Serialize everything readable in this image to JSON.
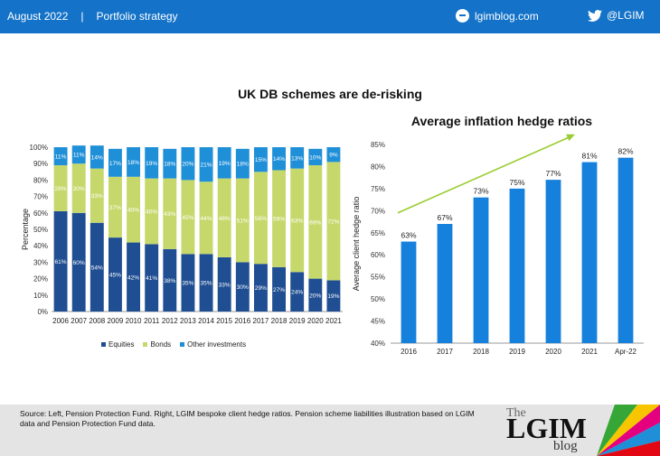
{
  "header": {
    "date": "August 2022",
    "separator": "|",
    "section": "Portfolio strategy",
    "blog": "lgimblog.com",
    "twitter": "@LGIM"
  },
  "main_title": "UK DB schemes are de-risking",
  "colors": {
    "equities": "#1f4e92",
    "bonds": "#c6d86b",
    "other": "#1f8fd8",
    "hedge_bar": "#1680dd",
    "arrow": "#9acd32",
    "header": "#1473c8"
  },
  "footer": {
    "source": "Source: Left, Pension Protection Fund. Right, LGIM  bespoke client hedge ratios. Pension scheme liabilities illustration based on LGIM data and Pension Protection Fund data."
  },
  "logo": {
    "the": "The",
    "name": "LGIM",
    "blog": "blog"
  },
  "chart_data": [
    {
      "type": "bar",
      "stacked": true,
      "ylabel": "Percentage",
      "ylim": [
        0,
        100
      ],
      "y_ticks": [
        "0%",
        "10%",
        "20%",
        "30%",
        "40%",
        "50%",
        "60%",
        "70%",
        "80%",
        "90%",
        "100%"
      ],
      "categories": [
        "2006",
        "2007",
        "2008",
        "2009",
        "2010",
        "2011",
        "2012",
        "2013",
        "2014",
        "2015",
        "2016",
        "2017",
        "2018",
        "2019",
        "2020",
        "2021"
      ],
      "legend": "bottom",
      "series": [
        {
          "name": "Equities",
          "values": [
            61,
            60,
            54,
            45,
            42,
            41,
            38,
            35,
            35,
            33,
            30,
            29,
            27,
            24,
            20,
            19
          ]
        },
        {
          "name": "Bonds",
          "values": [
            28,
            30,
            33,
            37,
            40,
            40,
            43,
            45,
            44,
            48,
            51,
            56,
            59,
            63,
            69,
            72
          ]
        },
        {
          "name": "Other investments",
          "values": [
            11,
            11,
            14,
            17,
            18,
            19,
            18,
            20,
            21,
            19,
            18,
            15,
            14,
            13,
            10,
            9
          ]
        }
      ]
    },
    {
      "type": "bar",
      "title": "Average inflation hedge ratios",
      "ylabel": "Average  client hedge ratio",
      "ylim": [
        40,
        85
      ],
      "y_ticks": [
        "40%",
        "45%",
        "50%",
        "55%",
        "60%",
        "65%",
        "70%",
        "75%",
        "80%",
        "85%"
      ],
      "categories": [
        "2016",
        "2017",
        "2018",
        "2019",
        "2020",
        "2021",
        "Apr-22"
      ],
      "values": [
        63,
        67,
        73,
        75,
        77,
        81,
        82
      ],
      "data_labels": [
        "63%",
        "67%",
        "73%",
        "75%",
        "77%",
        "81%",
        "82%"
      ],
      "trend_arrow": true
    }
  ]
}
